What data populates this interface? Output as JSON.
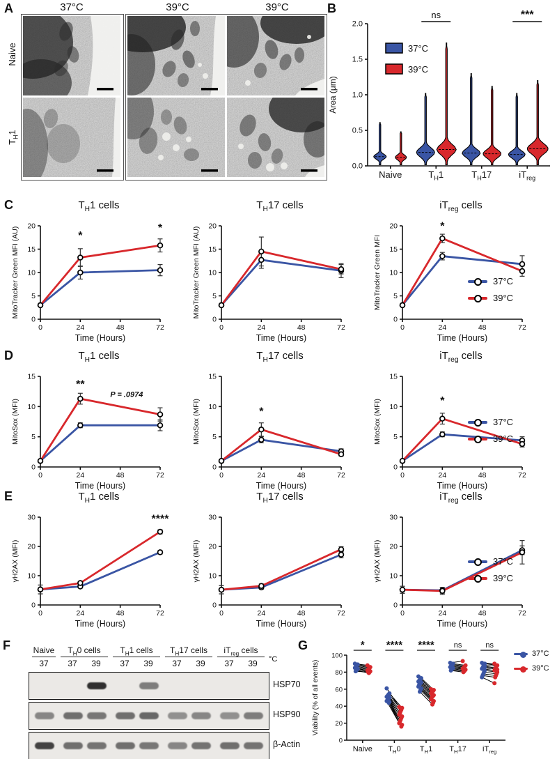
{
  "panels": {
    "a": "A",
    "b": "B",
    "c": "C",
    "d": "D",
    "e": "E",
    "f": "F",
    "g": "G"
  },
  "colors": {
    "blue": "#3A55A4",
    "red": "#D8282C",
    "band": "#262626"
  },
  "legend": {
    "t37": "37°C",
    "t39": "39°C"
  },
  "panelA": {
    "col_headers": [
      "37°C",
      "39°C",
      "39°C"
    ],
    "row_labels": [
      {
        "pre": "Naive",
        "sub": "",
        "post": ""
      },
      {
        "pre": "T",
        "sub": "H",
        "post": "1"
      }
    ]
  },
  "chart_data": [
    {
      "id": "B",
      "type": "violin",
      "ylabel": "Area (μm)",
      "ylim": [
        0,
        2.0
      ],
      "yticks": [
        0,
        0.5,
        1.0,
        1.5,
        2.0
      ],
      "categories": [
        {
          "pre": "Naive",
          "sub": "",
          "post": ""
        },
        {
          "pre": "T",
          "sub": "H",
          "post": "1"
        },
        {
          "pre": "T",
          "sub": "H",
          "post": "17"
        },
        {
          "pre": "iT",
          "sub": "reg",
          "post": ""
        }
      ],
      "legend": [
        "37°C",
        "39°C"
      ],
      "series": [
        {
          "name": "37°C",
          "color": "blue",
          "max": [
            0.61,
            1.02,
            1.3,
            1.02
          ],
          "median": [
            0.13,
            0.19,
            0.18,
            0.16
          ],
          "bodyw": [
            9,
            13,
            13,
            12
          ],
          "sigma": [
            0.05,
            0.09,
            0.08,
            0.07
          ]
        },
        {
          "name": "39°C",
          "color": "red",
          "max": [
            0.48,
            1.73,
            1.12,
            1.2
          ],
          "median": [
            0.12,
            0.23,
            0.17,
            0.24
          ],
          "bodyw": [
            8,
            14,
            13,
            15
          ],
          "sigma": [
            0.05,
            0.1,
            0.08,
            0.1
          ]
        }
      ],
      "annotations": [
        {
          "text": "ns",
          "cat": 1,
          "bold": false
        },
        {
          "text": "***",
          "cat": 3,
          "bold": true
        }
      ]
    },
    {
      "id": "C1",
      "type": "line",
      "title_parts": {
        "pre": "T",
        "sub": "H",
        "post": "1 cells"
      },
      "ylabel": "MitoTracker Green MFI (AU)",
      "xlabel": "Time (Hours)",
      "ylim": [
        0,
        20
      ],
      "yticks": [
        0,
        5,
        10,
        15,
        20
      ],
      "xticks": [
        0,
        24,
        48,
        72
      ],
      "x": [
        0,
        24,
        72
      ],
      "series": [
        {
          "name": "37°C",
          "color": "blue",
          "values": [
            3,
            10,
            10.5
          ],
          "err": [
            0.3,
            1.4,
            1.2
          ]
        },
        {
          "name": "39°C",
          "color": "red",
          "values": [
            3,
            13.2,
            15.8
          ],
          "err": [
            0.3,
            1.9,
            1.4
          ]
        }
      ],
      "sig": [
        {
          "text": "*",
          "x": 24,
          "y": 17.2
        },
        {
          "text": "*",
          "x": 72,
          "y": 18.8
        }
      ]
    },
    {
      "id": "C2",
      "type": "line",
      "title_parts": {
        "pre": "T",
        "sub": "H",
        "post": "17 cells"
      },
      "ylabel": "MitoTracker Green MFI (AU)",
      "xlabel": "Time (Hours)",
      "ylim": [
        0,
        20
      ],
      "yticks": [
        0,
        5,
        10,
        15,
        20
      ],
      "xticks": [
        0,
        24,
        48,
        72
      ],
      "x": [
        0,
        24,
        72
      ],
      "series": [
        {
          "name": "37°C",
          "color": "blue",
          "values": [
            3,
            12.7,
            10.4
          ],
          "err": [
            0.3,
            1.8,
            1.5
          ]
        },
        {
          "name": "39°C",
          "color": "red",
          "values": [
            3,
            14.5,
            10.7
          ],
          "err": [
            0.3,
            3.1,
            1.0
          ]
        }
      ],
      "sig": []
    },
    {
      "id": "C3",
      "type": "line",
      "title_parts": {
        "pre": "iT",
        "sub": "reg",
        "post": " cells"
      },
      "ylabel": "MitoTracker Green MFI",
      "xlabel": "Time (Hours)",
      "ylim": [
        0,
        20
      ],
      "yticks": [
        0,
        5,
        10,
        15,
        20
      ],
      "xticks": [
        0,
        24,
        48,
        72
      ],
      "x": [
        0,
        24,
        72
      ],
      "series": [
        {
          "name": "37°C",
          "color": "blue",
          "values": [
            3,
            13.5,
            11.8
          ],
          "err": [
            0.3,
            0.8,
            1.8
          ]
        },
        {
          "name": "39°C",
          "color": "red",
          "values": [
            3,
            17.3,
            10.3
          ],
          "err": [
            0.3,
            0.9,
            1.1
          ]
        }
      ],
      "sig": [
        {
          "text": "*",
          "x": 24,
          "y": 19.2
        }
      ]
    },
    {
      "id": "D1",
      "type": "line",
      "title_parts": {
        "pre": "T",
        "sub": "H",
        "post": "1 cells"
      },
      "ylabel": "MitoSox (MFI)",
      "xlabel": "Time (Hours)",
      "ylim": [
        0,
        15
      ],
      "yticks": [
        0,
        5,
        10,
        15
      ],
      "xticks": [
        0,
        24,
        48,
        72
      ],
      "x": [
        0,
        24,
        72
      ],
      "series": [
        {
          "name": "37°C",
          "color": "blue",
          "values": [
            1,
            6.9,
            6.9
          ],
          "err": [
            0.2,
            0.4,
            0.9
          ]
        },
        {
          "name": "39°C",
          "color": "red",
          "values": [
            1,
            11.3,
            8.7
          ],
          "err": [
            0.2,
            0.9,
            1.1
          ]
        }
      ],
      "sig": [
        {
          "text": "**",
          "x": 24,
          "y": 13.1
        }
      ],
      "note": {
        "text": "P = .0974",
        "x": 42,
        "y": 11.6
      }
    },
    {
      "id": "D2",
      "type": "line",
      "title_parts": {
        "pre": "T",
        "sub": "H",
        "post": "17 cells"
      },
      "ylabel": "MitoSox (MFI)",
      "xlabel": "Time (Hours)",
      "ylim": [
        0,
        15
      ],
      "yticks": [
        0,
        5,
        10,
        15
      ],
      "xticks": [
        0,
        24,
        48,
        72
      ],
      "x": [
        0,
        24,
        72
      ],
      "series": [
        {
          "name": "37°C",
          "color": "blue",
          "values": [
            1,
            4.5,
            2.6
          ],
          "err": [
            0.15,
            0.5,
            0.4
          ]
        },
        {
          "name": "39°C",
          "color": "red",
          "values": [
            1,
            6.2,
            2.1
          ],
          "err": [
            0.15,
            1.1,
            0.3
          ]
        }
      ],
      "sig": [
        {
          "text": "*",
          "x": 24,
          "y": 8.6
        }
      ]
    },
    {
      "id": "D3",
      "type": "line",
      "title_parts": {
        "pre": "iT",
        "sub": "reg",
        "post": " cells"
      },
      "ylabel": "MitoSox (MFI)",
      "xlabel": "Time (Hours)",
      "ylim": [
        0,
        15
      ],
      "yticks": [
        0,
        5,
        10,
        15
      ],
      "xticks": [
        0,
        24,
        48,
        72
      ],
      "x": [
        0,
        24,
        72
      ],
      "series": [
        {
          "name": "37°C",
          "color": "blue",
          "values": [
            1,
            5.4,
            4.4
          ],
          "err": [
            0.15,
            0.4,
            0.6
          ]
        },
        {
          "name": "39°C",
          "color": "red",
          "values": [
            1,
            8.0,
            3.8
          ],
          "err": [
            0.15,
            0.9,
            0.5
          ]
        }
      ],
      "sig": [
        {
          "text": "*",
          "x": 24,
          "y": 10.4
        }
      ]
    },
    {
      "id": "E1",
      "type": "line",
      "title_parts": {
        "pre": "T",
        "sub": "H",
        "post": "1 cells"
      },
      "ylabel": "γH2AX (MFI)",
      "xlabel": "Time (Hours)",
      "ylim": [
        0,
        30
      ],
      "yticks": [
        0,
        10,
        20,
        30
      ],
      "xticks": [
        0,
        24,
        48,
        72
      ],
      "x": [
        0,
        24,
        72
      ],
      "series": [
        {
          "name": "37°C",
          "color": "blue",
          "values": [
            5.3,
            6.3,
            18
          ],
          "err": [
            1.5,
            0.5,
            0.6
          ]
        },
        {
          "name": "39°C",
          "color": "red",
          "values": [
            5.3,
            7.5,
            25
          ],
          "err": [
            1.5,
            0.5,
            0.7
          ]
        }
      ],
      "sig": [
        {
          "text": "****",
          "x": 72,
          "y": 28.2
        }
      ]
    },
    {
      "id": "E2",
      "type": "line",
      "title_parts": {
        "pre": "T",
        "sub": "H",
        "post": "17 cells"
      },
      "ylabel": "γH2AX (MFI)",
      "xlabel": "Time (Hours)",
      "ylim": [
        0,
        30
      ],
      "yticks": [
        0,
        10,
        20,
        30
      ],
      "xticks": [
        0,
        24,
        48,
        72
      ],
      "x": [
        0,
        24,
        72
      ],
      "series": [
        {
          "name": "37°C",
          "color": "blue",
          "values": [
            5.2,
            6.0,
            17.2
          ],
          "err": [
            1.4,
            0.6,
            1.1
          ]
        },
        {
          "name": "39°C",
          "color": "red",
          "values": [
            5.2,
            6.5,
            19.0
          ],
          "err": [
            1.4,
            0.7,
            0.9
          ]
        }
      ],
      "sig": []
    },
    {
      "id": "E3",
      "type": "line",
      "title_parts": {
        "pre": "iT",
        "sub": "reg",
        "post": " cells"
      },
      "ylabel": "γH2AX (MFI)",
      "xlabel": "Time (Hours)",
      "ylim": [
        0,
        30
      ],
      "yticks": [
        0,
        10,
        20,
        30
      ],
      "xticks": [
        0,
        24,
        48,
        72
      ],
      "x": [
        0,
        24,
        72
      ],
      "series": [
        {
          "name": "37°C",
          "color": "blue",
          "values": [
            5.2,
            5.0,
            18.7
          ],
          "err": [
            1.2,
            1.0,
            1.5
          ]
        },
        {
          "name": "39°C",
          "color": "red",
          "values": [
            5.2,
            4.8,
            18.0
          ],
          "err": [
            1.2,
            1.2,
            4.0
          ]
        }
      ],
      "sig": []
    },
    {
      "id": "G",
      "type": "paired",
      "ylabel": "Viability (% of all events)",
      "ylim": [
        0,
        100
      ],
      "yticks": [
        0,
        20,
        40,
        60,
        80,
        100
      ],
      "categories": [
        {
          "pre": "Naive",
          "sub": "",
          "post": ""
        },
        {
          "pre": "T",
          "sub": "H",
          "post": "0"
        },
        {
          "pre": "T",
          "sub": "H",
          "post": "1"
        },
        {
          "pre": "T",
          "sub": "H",
          "post": "17"
        },
        {
          "pre": "iT",
          "sub": "reg",
          "post": ""
        }
      ],
      "sig": [
        "*",
        "****",
        "****",
        "ns",
        "ns"
      ],
      "legend": [
        "37°C",
        "39°C"
      ],
      "pairs": [
        [
          [
            90,
            88
          ],
          [
            89,
            86
          ],
          [
            88,
            85
          ],
          [
            87,
            84
          ],
          [
            86,
            83
          ],
          [
            85,
            82
          ],
          [
            84,
            81
          ],
          [
            83,
            80
          ],
          [
            82,
            79
          ],
          [
            81,
            80
          ]
        ],
        [
          [
            61,
            39
          ],
          [
            55,
            38
          ],
          [
            54,
            36
          ],
          [
            53,
            34
          ],
          [
            52,
            32
          ],
          [
            51,
            30
          ],
          [
            50,
            28
          ],
          [
            49,
            26
          ],
          [
            48,
            24
          ],
          [
            47,
            22
          ],
          [
            46,
            20
          ],
          [
            45,
            18
          ],
          [
            44,
            16
          ]
        ],
        [
          [
            75,
            60
          ],
          [
            73,
            59
          ],
          [
            72,
            58
          ],
          [
            71,
            57
          ],
          [
            70,
            56
          ],
          [
            69,
            55
          ],
          [
            68,
            53
          ],
          [
            67,
            52
          ],
          [
            66,
            51
          ],
          [
            65,
            50
          ],
          [
            63,
            48
          ],
          [
            61,
            46
          ],
          [
            59,
            44
          ],
          [
            57,
            42
          ]
        ],
        [
          [
            91,
            93
          ],
          [
            90,
            88
          ],
          [
            89,
            87
          ],
          [
            88,
            86
          ],
          [
            87,
            85
          ],
          [
            86,
            84
          ],
          [
            85,
            83
          ],
          [
            84,
            82
          ],
          [
            83,
            81
          ],
          [
            82,
            80
          ]
        ],
        [
          [
            91,
            90
          ],
          [
            90,
            88
          ],
          [
            88,
            87
          ],
          [
            87,
            85
          ],
          [
            85,
            84
          ],
          [
            84,
            82
          ],
          [
            82,
            80
          ],
          [
            80,
            78
          ],
          [
            78,
            76
          ],
          [
            76,
            74
          ],
          [
            74,
            67
          ],
          [
            86,
            83
          ]
        ]
      ]
    }
  ],
  "blot": {
    "groups": [
      {
        "label_parts": {
          "pre": "Naive",
          "sub": "",
          "post": ""
        },
        "lanes": 1
      },
      {
        "label_parts": {
          "pre": "T",
          "sub": "H",
          "post": "0 cells"
        },
        "lanes": 2
      },
      {
        "label_parts": {
          "pre": "T",
          "sub": "H",
          "post": "1 cells"
        },
        "lanes": 2
      },
      {
        "label_parts": {
          "pre": "T",
          "sub": "H",
          "post": "17 cells"
        },
        "lanes": 2
      },
      {
        "label_parts": {
          "pre": "iT",
          "sub": "reg",
          "post": " cells"
        },
        "lanes": 2
      }
    ],
    "temps": [
      "37",
      "37",
      "39",
      "37",
      "39",
      "37",
      "39",
      "37",
      "39"
    ],
    "temp_unit": "°C",
    "rows": [
      {
        "label": "HSP70",
        "bands": [
          0,
          0,
          0.95,
          0,
          0.55,
          0,
          0,
          0,
          0
        ]
      },
      {
        "label": "HSP90",
        "bands": [
          0.5,
          0.62,
          0.58,
          0.62,
          0.66,
          0.45,
          0.5,
          0.45,
          0.55
        ]
      },
      {
        "label": "β-Actin",
        "bands": [
          0.85,
          0.62,
          0.6,
          0.62,
          0.58,
          0.5,
          0.6,
          0.62,
          0.6
        ]
      }
    ]
  }
}
